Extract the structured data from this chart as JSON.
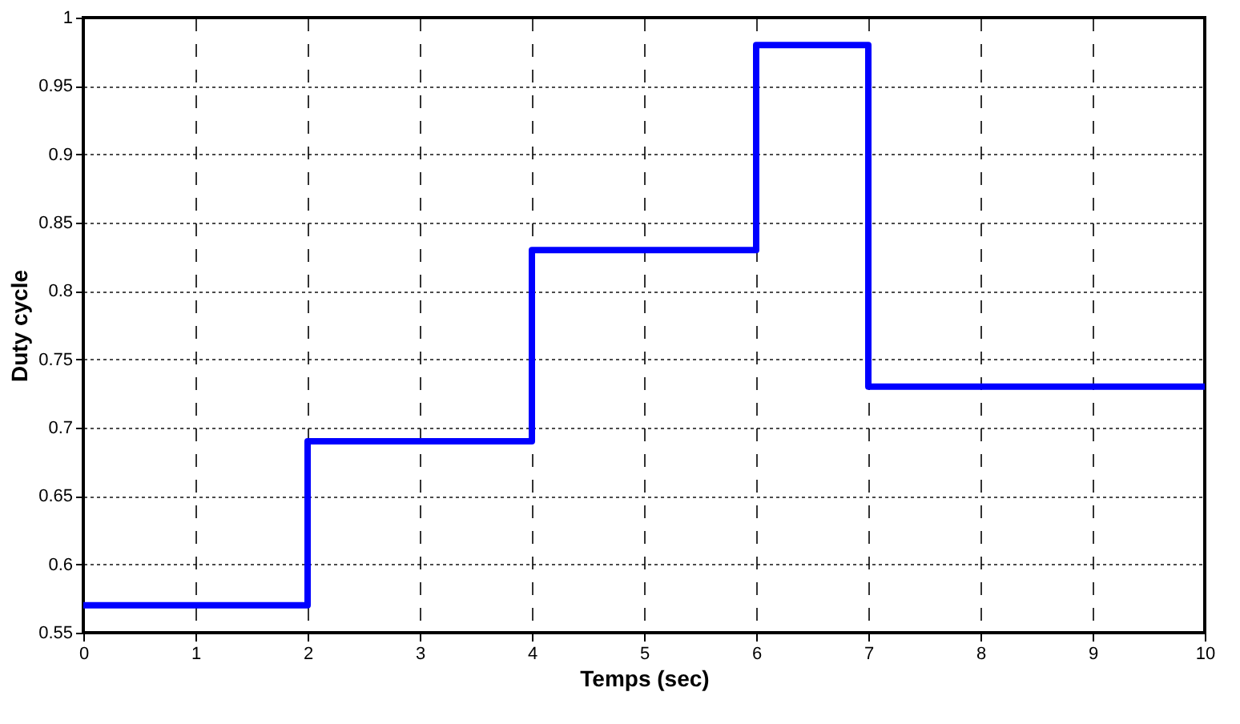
{
  "chart_data": {
    "type": "step",
    "xlabel": "Temps (sec)",
    "ylabel": "Duty cycle",
    "x": [
      0,
      2,
      4,
      6,
      7,
      10
    ],
    "series": [
      {
        "color": "#0000ff",
        "values": [
          0.57,
          0.69,
          0.83,
          0.98,
          0.73,
          0.73
        ]
      }
    ],
    "xlim": [
      0,
      10
    ],
    "xticks": [
      0,
      1,
      2,
      3,
      4,
      5,
      6,
      7,
      8,
      9,
      10
    ],
    "ylim": [
      0.55,
      1
    ],
    "yticks": [
      0.55,
      0.6,
      0.65,
      0.7,
      0.75,
      0.8,
      0.85,
      0.9,
      0.95,
      1
    ],
    "grid": true
  }
}
